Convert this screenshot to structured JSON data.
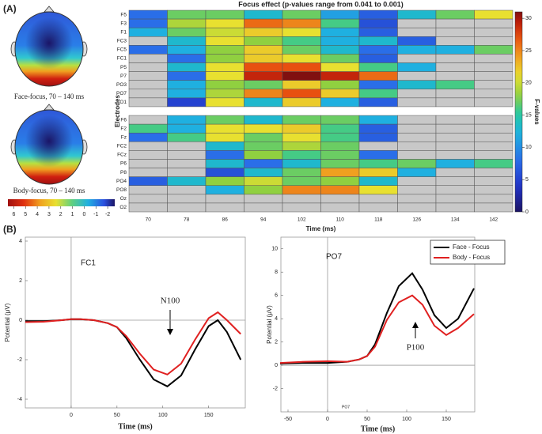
{
  "panel_labels": [
    "(A)",
    "(B)"
  ],
  "topomap": {
    "captions": [
      "Face-focus, 70 – 140 ms",
      "Body-focus, 70 – 140 ms"
    ],
    "colorbar_ticks": [
      6,
      5,
      4,
      3,
      2,
      1,
      0,
      -1,
      -2
    ],
    "colorbar_lim": [
      6.5,
      -2.6
    ]
  },
  "chart_data": [
    {
      "type": "heatmap",
      "title": "Focus effect (p-values range from 0.041 to 0.001)",
      "x_label": "Time (ms)",
      "y_label": "Electrodes",
      "categories": [
        70,
        78,
        86,
        94,
        102,
        110,
        118,
        126,
        134,
        142
      ],
      "y_categories": [
        "F5",
        "F3",
        "F1",
        "FC3",
        "FC5",
        "FC1",
        "P5",
        "P7",
        "PO3",
        "PO7",
        "O1",
        null,
        "F6",
        "F2",
        "Fz",
        "FC2",
        "FCz",
        "P6",
        "P8",
        "PO4",
        "PO8",
        "Oz",
        "O2"
      ],
      "values": [
        [
          8,
          17,
          17,
          13,
          17,
          11,
          7,
          13,
          17,
          21
        ],
        [
          8,
          19,
          21,
          26,
          25,
          16,
          6,
          null,
          null,
          null
        ],
        [
          12,
          17,
          20,
          22,
          21,
          12,
          7,
          null,
          null,
          null
        ],
        [
          null,
          13,
          21,
          18,
          16,
          12,
          13,
          7,
          null,
          null
        ],
        [
          8,
          12,
          18,
          22,
          17,
          13,
          8,
          12,
          12,
          17
        ],
        [
          null,
          8,
          18,
          22,
          21,
          17,
          7,
          null,
          null,
          null
        ],
        [
          null,
          13,
          21,
          27,
          27,
          21,
          16,
          12,
          null,
          null
        ],
        [
          null,
          8,
          21,
          29,
          31,
          29,
          26,
          null,
          null,
          null
        ],
        [
          null,
          12,
          18,
          17,
          22,
          18,
          8,
          13,
          16,
          null
        ],
        [
          null,
          12,
          19,
          25,
          27,
          22,
          16,
          null,
          null,
          null
        ],
        [
          null,
          5,
          21,
          13,
          22,
          12,
          7,
          null,
          null,
          null
        ],
        [
          null,
          null,
          null,
          null,
          null,
          null,
          null,
          null,
          null,
          null
        ],
        [
          null,
          12,
          17,
          13,
          17,
          17,
          12,
          null,
          null,
          null
        ],
        [
          16,
          12,
          21,
          21,
          22,
          16,
          7,
          null,
          null,
          null
        ],
        [
          8,
          16,
          21,
          17,
          21,
          16,
          7,
          null,
          null,
          null
        ],
        [
          null,
          null,
          13,
          17,
          19,
          17,
          null,
          null,
          null,
          null
        ],
        [
          null,
          null,
          8,
          18,
          16,
          17,
          8,
          null,
          null,
          null
        ],
        [
          null,
          null,
          13,
          8,
          13,
          17,
          16,
          17,
          12,
          16
        ],
        [
          null,
          null,
          6,
          13,
          17,
          24,
          22,
          12,
          null,
          null
        ],
        [
          7,
          13,
          18,
          20,
          17,
          18,
          13,
          null,
          null,
          null
        ],
        [
          null,
          null,
          12,
          18,
          25,
          25,
          21,
          null,
          null,
          null
        ],
        [
          null,
          null,
          null,
          null,
          null,
          null,
          null,
          null,
          null,
          null
        ],
        [
          null,
          null,
          null,
          null,
          null,
          null,
          null,
          null,
          null,
          null
        ]
      ],
      "clim": [
        0,
        31
      ],
      "cticks": [
        0,
        5,
        10,
        15,
        20,
        25,
        30
      ],
      "colorbar_label": "F-values"
    },
    {
      "type": "line",
      "title": "FC1",
      "annotation": "N100",
      "x_label": "Time (ms)",
      "y_label": "Potential (μV)",
      "x": [
        -50,
        -30,
        -10,
        0,
        10,
        25,
        40,
        50,
        60,
        75,
        90,
        105,
        120,
        135,
        150,
        160,
        170,
        185
      ],
      "series": [
        {
          "color": "#000000",
          "values": [
            -0.05,
            -0.05,
            0.0,
            0.05,
            0.05,
            0.0,
            -0.15,
            -0.35,
            -0.9,
            -2.0,
            -3.0,
            -3.35,
            -2.8,
            -1.5,
            -0.3,
            0.0,
            -0.6,
            -2.0
          ]
        },
        {
          "color": "#e02020",
          "values": [
            -0.1,
            -0.08,
            0.0,
            0.05,
            0.05,
            0.0,
            -0.15,
            -0.35,
            -0.8,
            -1.7,
            -2.5,
            -2.75,
            -2.2,
            -1.0,
            0.1,
            0.4,
            0.0,
            -0.7
          ]
        }
      ],
      "xlim": [
        -50,
        190
      ],
      "ylim": [
        -4.44,
        4.2
      ],
      "xticks": [
        0,
        50,
        100,
        150
      ],
      "yticks": [
        -4,
        -2,
        0,
        2,
        4
      ],
      "legend": false
    },
    {
      "type": "line",
      "title": "PO7",
      "annotation": "P100",
      "axis_note": "PO7",
      "x_label": "Time (ms)",
      "y_label": "Potential (μV)",
      "x": [
        -60,
        -30,
        0,
        25,
        40,
        50,
        60,
        75,
        90,
        107,
        120,
        135,
        150,
        165,
        185
      ],
      "series": [
        {
          "name": "Face - Focus",
          "color": "#000000",
          "values": [
            0.15,
            0.2,
            0.2,
            0.3,
            0.5,
            0.8,
            1.8,
            4.5,
            6.8,
            7.9,
            6.5,
            4.3,
            3.2,
            4.0,
            6.6
          ]
        },
        {
          "name": "Body - Focus",
          "color": "#e02020",
          "values": [
            0.2,
            0.3,
            0.35,
            0.3,
            0.5,
            0.8,
            1.6,
            3.9,
            5.4,
            6.0,
            5.2,
            3.4,
            2.6,
            3.2,
            4.4
          ]
        }
      ],
      "xlim": [
        -59,
        186
      ],
      "ylim": [
        -4,
        11
      ],
      "xticks": [
        -50,
        0,
        50,
        100,
        150
      ],
      "yticks": [
        -2,
        0,
        2,
        4,
        6,
        8,
        10
      ],
      "legend": true
    }
  ]
}
